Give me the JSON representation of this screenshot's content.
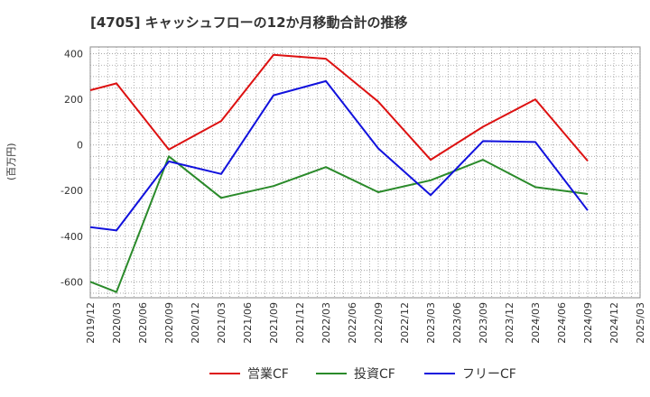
{
  "chart_data": {
    "type": "line",
    "title": "[4705]  キャッシュフローの12か月移動合計の推移",
    "ylabel": "(百万円)",
    "xlabel": "",
    "ylim": [
      -670,
      430
    ],
    "yticks": [
      400,
      200,
      0,
      -200,
      -400,
      -600
    ],
    "x_labels": [
      "2019/12",
      "2020/03",
      "2020/06",
      "2020/09",
      "2020/12",
      "2021/03",
      "2021/06",
      "2021/09",
      "2021/12",
      "2022/03",
      "2022/06",
      "2022/09",
      "2022/12",
      "2023/03",
      "2023/06",
      "2023/09",
      "2023/12",
      "2024/03",
      "2024/06",
      "2024/09",
      "2024/12",
      "2025/03"
    ],
    "grid": true,
    "legend_position": "bottom",
    "series": [
      {
        "name": "営業CF",
        "color": "#dd1111",
        "values": [
          240,
          270,
          null,
          -20,
          null,
          105,
          null,
          395,
          null,
          378,
          null,
          190,
          null,
          -65,
          null,
          80,
          null,
          200,
          null,
          -70,
          null,
          null
        ]
      },
      {
        "name": "投資CF",
        "color": "#2a8a2a",
        "values": [
          -600,
          -645,
          null,
          -50,
          null,
          -232,
          null,
          -180,
          null,
          -97,
          null,
          -207,
          null,
          -155,
          null,
          -65,
          null,
          -185,
          null,
          -215,
          null,
          null
        ]
      },
      {
        "name": "フリーCF",
        "color": "#1111dd",
        "values": [
          -360,
          -375,
          null,
          -72,
          null,
          -127,
          null,
          218,
          null,
          280,
          null,
          -15,
          null,
          -220,
          null,
          17,
          null,
          13,
          null,
          -287,
          null,
          null
        ]
      }
    ]
  }
}
